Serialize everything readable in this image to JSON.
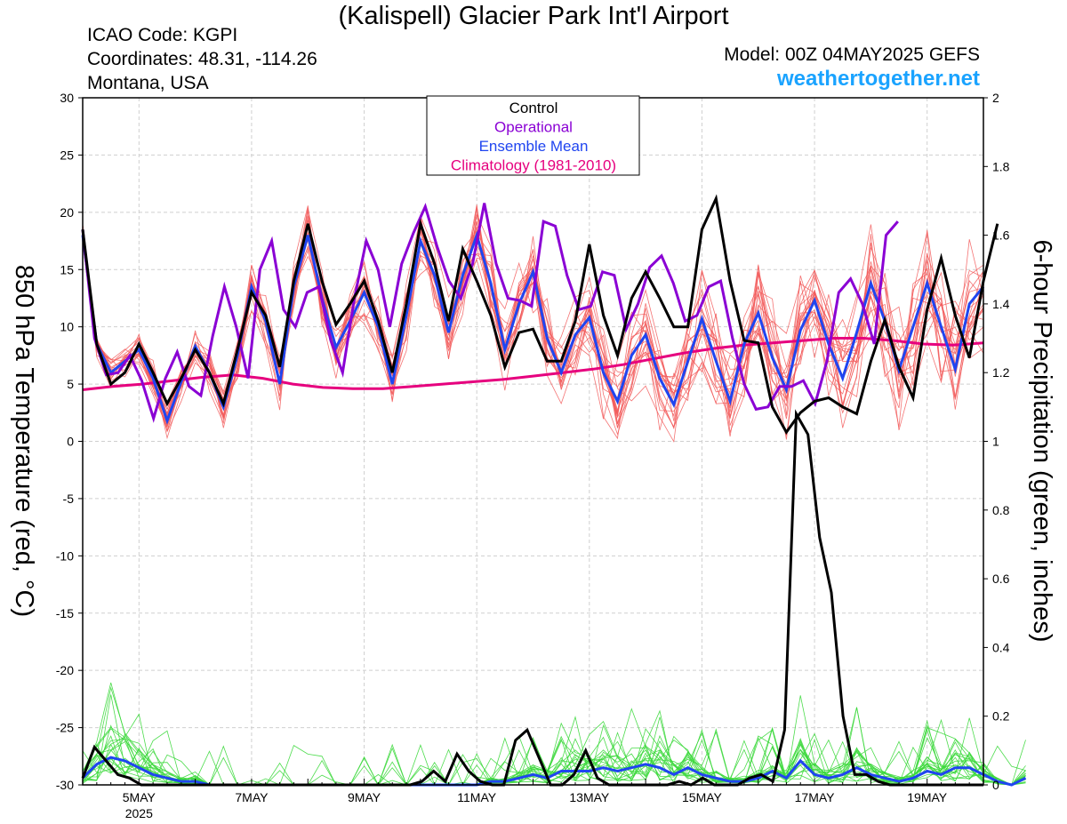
{
  "header": {
    "title": "(Kalispell) Glacier Park Int'l Airport",
    "icao": "ICAO Code: KGPI",
    "coords": "Coordinates: 48.31, -114.26",
    "state": "Montana, USA",
    "model": "Model: 00Z 04MAY2025 GEFS",
    "site": "weathertogether.net"
  },
  "chart_data": {
    "type": "line",
    "x_unit": "forecast hours from 00Z 04MAY2025 (6-hourly)",
    "x_range": [
      0,
      384
    ],
    "left_axis": {
      "label": "850 hPa Temperature (red, °C)",
      "ylim": [
        -30,
        30
      ],
      "ticks": [
        30,
        25,
        20,
        15,
        10,
        5,
        0,
        -5,
        -10,
        -15,
        -20,
        -25,
        -30
      ]
    },
    "right_axis": {
      "label": "6-hour Precipitation (green, inches)",
      "ylim": [
        0,
        2
      ],
      "ticks": [
        "2",
        "1.8",
        "1.6",
        "1.4",
        "1.2",
        "1",
        "0.8",
        "0.6",
        "0.4",
        "0.2",
        "0"
      ]
    },
    "x_tick_labels": [
      {
        "hour": 24,
        "label": "5MAY",
        "sub": "2025"
      },
      {
        "hour": 72,
        "label": "7MAY",
        "sub": ""
      },
      {
        "hour": 120,
        "label": "9MAY",
        "sub": ""
      },
      {
        "hour": 168,
        "label": "11MAY",
        "sub": ""
      },
      {
        "hour": 216,
        "label": "13MAY",
        "sub": ""
      },
      {
        "hour": 264,
        "label": "15MAY",
        "sub": ""
      },
      {
        "hour": 312,
        "label": "17MAY",
        "sub": ""
      },
      {
        "hour": 360,
        "label": "19MAY",
        "sub": ""
      }
    ],
    "grid": true,
    "legend": {
      "position": "top-center",
      "entries": [
        {
          "label": "Control",
          "color": "#000000"
        },
        {
          "label": "Operational",
          "color": "#8a00d4"
        },
        {
          "label": "Ensemble Mean",
          "color": "#1f45f0"
        },
        {
          "label": "Climatology (1981-2010)",
          "color": "#e6007e"
        }
      ]
    },
    "colors": {
      "members": "#f25a5a",
      "precip_members": "#3ad83a",
      "control": "#000000",
      "operational": "#8a00d4",
      "mean": "#1f45f0",
      "climatology": "#e6007e"
    },
    "temperature": {
      "control": [
        18.5,
        8.5,
        5,
        6,
        8.5,
        6,
        3.3,
        5.5,
        8,
        6,
        3.3,
        8,
        13,
        11,
        6.5,
        14,
        19,
        14,
        10.2,
        12,
        14,
        10.5,
        6,
        12,
        19,
        15.5,
        10.5,
        16.8,
        14,
        11,
        6.5,
        9.5,
        9.8,
        7,
        7,
        10.5,
        17.2,
        11,
        7.5,
        12.5,
        14.8,
        12.5,
        10,
        10,
        18.5,
        21.2,
        14,
        8.8,
        8.6,
        3,
        0.8,
        2.5,
        3.5,
        3.8,
        3,
        2.4,
        7,
        10.6,
        6.5,
        3.8,
        11.5,
        16,
        11,
        7.3,
        14,
        19
      ],
      "operational": [
        18.5,
        9,
        5.8,
        6,
        7.5,
        5.3,
        2,
        5.5,
        7.8,
        4.8,
        4,
        9.2,
        13.5,
        10,
        5.5,
        15,
        17.5,
        11.5,
        10,
        13,
        13.5,
        8.8,
        6,
        12.5,
        17.5,
        15,
        10,
        15.5,
        18.2,
        20.5,
        17,
        14,
        12.5,
        15.5,
        20.8,
        15.5,
        12.5,
        12.3,
        11.8,
        19.2,
        18.8,
        14.5,
        11.5,
        11.8,
        14.8,
        14.5,
        9.8,
        12,
        15.2,
        16.2,
        13.8,
        10.5,
        11,
        13.5,
        14,
        9,
        5,
        2.8,
        3,
        4.8,
        4.8,
        5.3,
        3.3,
        7,
        13,
        14.2,
        12,
        8.5,
        18,
        19.2
      ],
      "mean": [
        18,
        8.5,
        6,
        7,
        8,
        5.5,
        1.8,
        5.2,
        8.3,
        6,
        3,
        7.5,
        13.5,
        10.5,
        5,
        13.5,
        18,
        12.5,
        8.2,
        10.5,
        13,
        10,
        5,
        11,
        17.5,
        14.5,
        9.5,
        14.5,
        18,
        13.8,
        8,
        12,
        14.8,
        9,
        6,
        9.3,
        10.8,
        6,
        3.5,
        7.5,
        9.3,
        5.5,
        3.2,
        7,
        10.7,
        7,
        3.5,
        8.5,
        11.2,
        7.3,
        4.5,
        9.7,
        12.3,
        8.5,
        5.5,
        9.5,
        13.8,
        10.5,
        6.2,
        10,
        13.8,
        10,
        6.3,
        12,
        13.5
      ],
      "climatology": [
        4.5,
        4.8,
        5,
        5.3,
        5.6,
        5.8,
        5.5,
        5,
        4.7,
        4.6,
        4.6,
        4.8,
        5,
        5.2,
        5.4,
        5.7,
        6,
        6.3,
        6.7,
        7.2,
        7.7,
        8.1,
        8.4,
        8.6,
        8.8,
        9,
        9,
        8.8,
        8.5,
        8.4,
        8.6
      ]
    },
    "precipitation": {
      "control": [
        0.02,
        0.11,
        0.07,
        0.03,
        0.02,
        0,
        0,
        0,
        0,
        0,
        0,
        0,
        0,
        0,
        0,
        0,
        0,
        0,
        0,
        0,
        0,
        0,
        0,
        0,
        0,
        0,
        0,
        0,
        0,
        0.01,
        0.04,
        0.01,
        0.09,
        0.04,
        0.01,
        0,
        0,
        0.13,
        0.16,
        0.08,
        0,
        0,
        0.03,
        0.1,
        0.02,
        0,
        0,
        0,
        0,
        0,
        0,
        0.01,
        0,
        0.02,
        0,
        0,
        0,
        0.02,
        0.03,
        0.01,
        0.16,
        1.08,
        1.02,
        0.72,
        0.56,
        0.2,
        0.03,
        0.03,
        0.01,
        0,
        0,
        0,
        0,
        0,
        0,
        0,
        0,
        0
      ],
      "mean": [
        0.02,
        0.06,
        0.08,
        0.07,
        0.05,
        0.03,
        0.02,
        0.01,
        0.01,
        0,
        0,
        0,
        0,
        0,
        0,
        0,
        0,
        0,
        0,
        0,
        0,
        0,
        0,
        0,
        0,
        0,
        0,
        0,
        0,
        0.01,
        0.01,
        0.02,
        0.03,
        0.02,
        0.04,
        0.04,
        0.04,
        0.05,
        0.04,
        0.05,
        0.06,
        0.05,
        0.03,
        0.05,
        0.03,
        0.02,
        0.01,
        0.01,
        0.02,
        0.04,
        0.02,
        0.07,
        0.03,
        0.02,
        0.03,
        0.05,
        0.03,
        0.02,
        0.01,
        0.02,
        0.04,
        0.03,
        0.05,
        0.05,
        0.03,
        0.01,
        0,
        0.02
      ]
    }
  }
}
